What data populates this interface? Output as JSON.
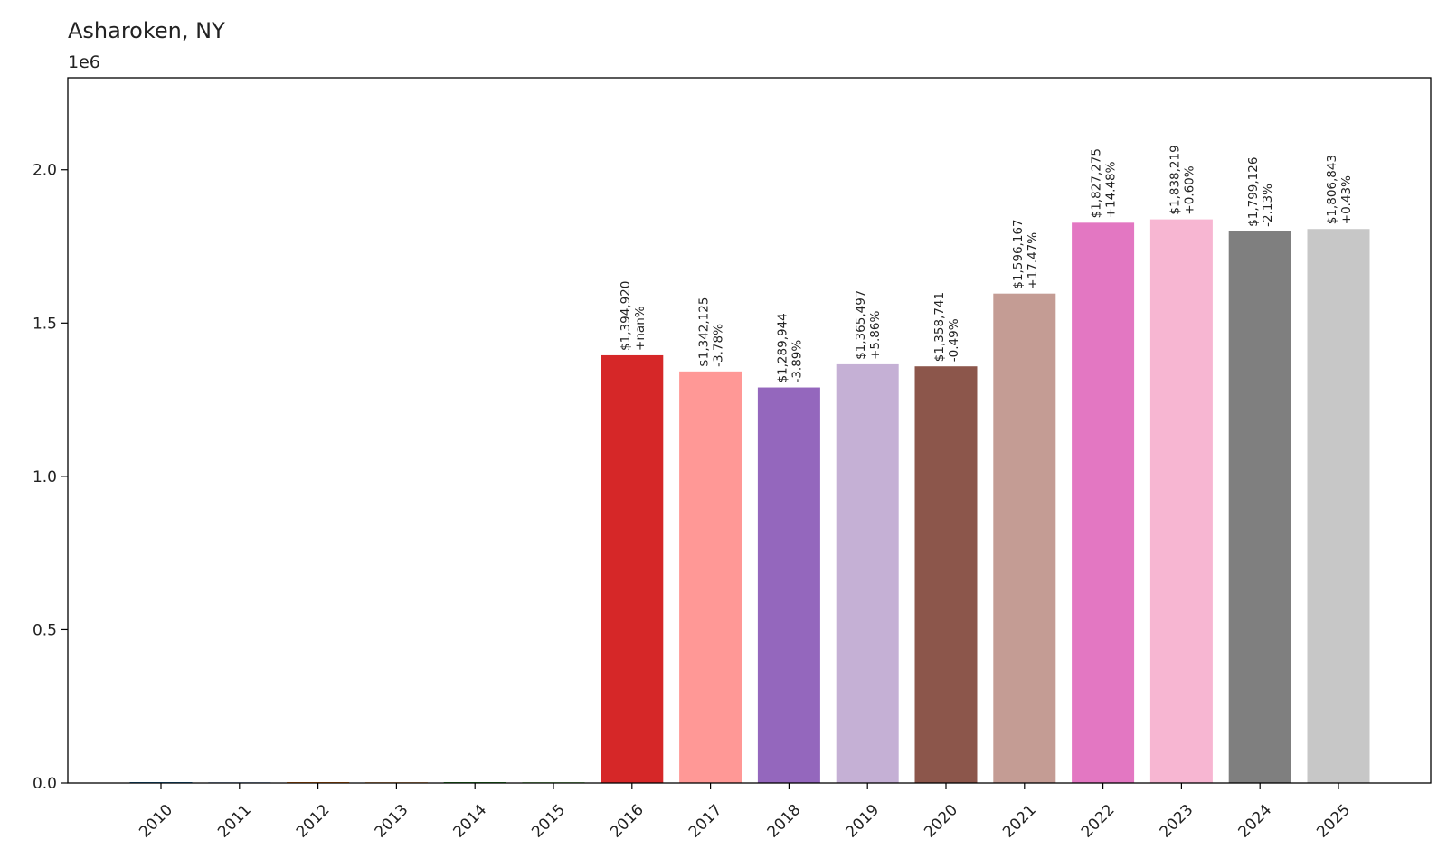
{
  "chart_data": {
    "type": "bar",
    "title": "Asharoken, NY",
    "y_offset_label": "1e6",
    "xlabel": "",
    "ylabel": "",
    "ylim": [
      0,
      2300000
    ],
    "y_ticks": [
      0,
      500000,
      1000000,
      1500000,
      2000000
    ],
    "y_tick_labels": [
      "0.0",
      "0.5",
      "1.0",
      "1.5",
      "2.0"
    ],
    "grid": false,
    "categories": [
      "2010",
      "2011",
      "2012",
      "2013",
      "2014",
      "2015",
      "2016",
      "2017",
      "2018",
      "2019",
      "2020",
      "2021",
      "2022",
      "2023",
      "2024",
      "2025"
    ],
    "values": [
      0,
      0,
      0,
      0,
      0,
      0,
      1394920,
      1342125,
      1289944,
      1365497,
      1358741,
      1596167,
      1827275,
      1838219,
      1799126,
      1806843
    ],
    "value_labels": [
      "",
      "",
      "",
      "",
      "",
      "",
      "$1,394,920",
      "$1,342,125",
      "$1,289,944",
      "$1,365,497",
      "$1,358,741",
      "$1,596,167",
      "$1,827,275",
      "$1,838,219",
      "$1,799,126",
      "$1,806,843"
    ],
    "change_labels": [
      "",
      "",
      "",
      "",
      "",
      "",
      "+nan%",
      "-3.78%",
      "-3.89%",
      "+5.86%",
      "-0.49%",
      "+17.47%",
      "+14.48%",
      "+0.60%",
      "-2.13%",
      "+0.43%"
    ],
    "colors": [
      "#1f77b4",
      "#aec7e8",
      "#ff7f0e",
      "#ffbb78",
      "#2ca02c",
      "#98df8a",
      "#d62728",
      "#ff9896",
      "#9467bd",
      "#c5b0d5",
      "#8c564b",
      "#c49c94",
      "#e377c2",
      "#f7b6d2",
      "#7f7f7f",
      "#c7c7c7"
    ]
  }
}
